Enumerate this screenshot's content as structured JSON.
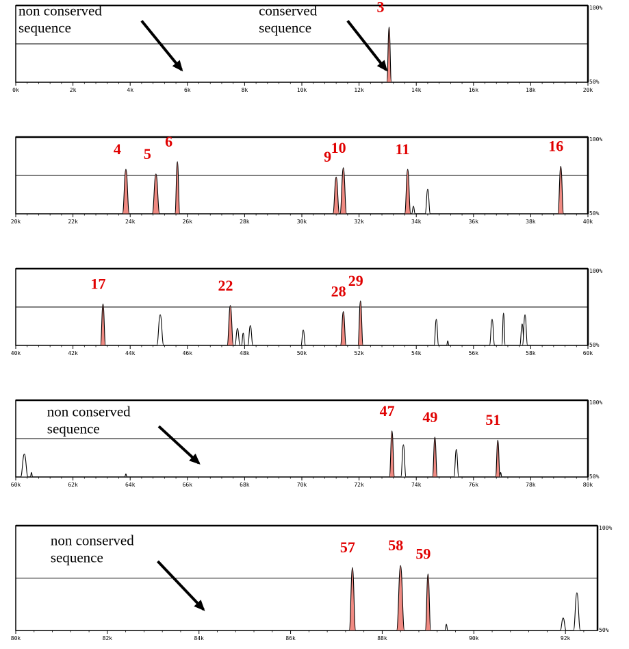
{
  "chart_data": [
    {
      "type": "area",
      "title": "",
      "xlim": [
        0,
        20000
      ],
      "ylim": [
        50,
        100
      ],
      "x_ticks": [
        "0k",
        "2k",
        "4k",
        "6k",
        "8k",
        "10k",
        "12k",
        "14k",
        "16k",
        "18k",
        "20k"
      ],
      "y_tick_top": "100%",
      "y_tick_bottom": "50%",
      "threshold": 75,
      "annotations": [
        {
          "lines": [
            "non conserved",
            "sequence"
          ],
          "text_x": 0,
          "text_y": 98,
          "arrow_from": [
            4400,
            90
          ],
          "arrow_to": [
            5800,
            58
          ]
        },
        {
          "lines": [
            "conserved",
            "sequence"
          ],
          "text_x": 8400,
          "text_y": 98,
          "arrow_from": [
            11600,
            90
          ],
          "arrow_to": [
            12950,
            58
          ]
        }
      ],
      "peaks": [
        {
          "label": "3",
          "x": 13050,
          "width": 160,
          "height": 86,
          "conserved": true
        }
      ]
    },
    {
      "type": "area",
      "title": "",
      "xlim": [
        20000,
        40000
      ],
      "ylim": [
        50,
        100
      ],
      "x_ticks": [
        "20k",
        "22k",
        "24k",
        "26k",
        "28k",
        "30k",
        "32k",
        "34k",
        "36k",
        "38k",
        "40k"
      ],
      "y_tick_top": "100%",
      "y_tick_bottom": "50%",
      "threshold": 75,
      "annotations": [],
      "peaks": [
        {
          "label": "4",
          "x": 23850,
          "width": 240,
          "height": 79,
          "conserved": true
        },
        {
          "label": "5",
          "x": 24900,
          "width": 260,
          "height": 76,
          "conserved": true
        },
        {
          "label": "6",
          "x": 25650,
          "width": 170,
          "height": 84,
          "conserved": true
        },
        {
          "label": "9",
          "x": 31200,
          "width": 230,
          "height": 74,
          "conserved": true
        },
        {
          "label": "10",
          "x": 31450,
          "width": 230,
          "height": 80,
          "conserved": true
        },
        {
          "label": "11",
          "x": 33700,
          "width": 210,
          "height": 79,
          "conserved": true
        },
        {
          "label": "",
          "x": 33900,
          "width": 120,
          "height": 55,
          "conserved": false
        },
        {
          "label": "",
          "x": 34400,
          "width": 180,
          "height": 66,
          "conserved": false
        },
        {
          "label": "16",
          "x": 39050,
          "width": 200,
          "height": 81,
          "conserved": true
        }
      ]
    },
    {
      "type": "area",
      "title": "",
      "xlim": [
        40000,
        60000
      ],
      "ylim": [
        50,
        100
      ],
      "x_ticks": [
        "40k",
        "42k",
        "44k",
        "46k",
        "48k",
        "50k",
        "52k",
        "54k",
        "56k",
        "58k",
        "60k"
      ],
      "y_tick_top": "100%",
      "y_tick_bottom": "50%",
      "threshold": 75,
      "annotations": [],
      "peaks": [
        {
          "label": "17",
          "x": 43050,
          "width": 180,
          "height": 77,
          "conserved": true
        },
        {
          "label": "",
          "x": 45050,
          "width": 240,
          "height": 70,
          "conserved": false
        },
        {
          "label": "22",
          "x": 47500,
          "width": 220,
          "height": 76,
          "conserved": true
        },
        {
          "label": "",
          "x": 47750,
          "width": 180,
          "height": 61,
          "conserved": false
        },
        {
          "label": "",
          "x": 47950,
          "width": 120,
          "height": 58,
          "conserved": false
        },
        {
          "label": "",
          "x": 48200,
          "width": 180,
          "height": 63,
          "conserved": false
        },
        {
          "label": "",
          "x": 50050,
          "width": 160,
          "height": 60,
          "conserved": false
        },
        {
          "label": "28",
          "x": 51450,
          "width": 200,
          "height": 72,
          "conserved": true
        },
        {
          "label": "29",
          "x": 52050,
          "width": 180,
          "height": 79,
          "conserved": true
        },
        {
          "label": "",
          "x": 54700,
          "width": 160,
          "height": 67,
          "conserved": false
        },
        {
          "label": "",
          "x": 55100,
          "width": 80,
          "height": 53,
          "conserved": false
        },
        {
          "label": "",
          "x": 56650,
          "width": 180,
          "height": 67,
          "conserved": false
        },
        {
          "label": "",
          "x": 57050,
          "width": 120,
          "height": 71,
          "conserved": false
        },
        {
          "label": "",
          "x": 57700,
          "width": 160,
          "height": 64,
          "conserved": false
        },
        {
          "label": "",
          "x": 57800,
          "width": 180,
          "height": 70,
          "conserved": false
        }
      ]
    },
    {
      "type": "area",
      "title": "",
      "xlim": [
        60000,
        80000
      ],
      "ylim": [
        50,
        100
      ],
      "x_ticks": [
        "60k",
        "62k",
        "64k",
        "66k",
        "68k",
        "70k",
        "72k",
        "74k",
        "76k",
        "78k",
        "80k"
      ],
      "y_tick_top": "100%",
      "y_tick_bottom": "50%",
      "threshold": 75,
      "annotations": [
        {
          "lines": [
            "non conserved",
            "sequence"
          ],
          "text_x": 61000,
          "text_y": 94,
          "arrow_from": [
            65000,
            83
          ],
          "arrow_to": [
            66400,
            59
          ]
        }
      ],
      "peaks": [
        {
          "label": "",
          "x": 60300,
          "width": 260,
          "height": 65,
          "conserved": false
        },
        {
          "label": "",
          "x": 60550,
          "width": 60,
          "height": 53,
          "conserved": false
        },
        {
          "label": "",
          "x": 63850,
          "width": 60,
          "height": 52,
          "conserved": false
        },
        {
          "label": "47",
          "x": 73150,
          "width": 180,
          "height": 80,
          "conserved": true
        },
        {
          "label": "",
          "x": 73550,
          "width": 180,
          "height": 71,
          "conserved": false
        },
        {
          "label": "49",
          "x": 74650,
          "width": 170,
          "height": 76,
          "conserved": true
        },
        {
          "label": "",
          "x": 75400,
          "width": 170,
          "height": 68,
          "conserved": false
        },
        {
          "label": "51",
          "x": 76850,
          "width": 160,
          "height": 74,
          "conserved": true
        },
        {
          "label": "",
          "x": 76950,
          "width": 80,
          "height": 53,
          "conserved": false
        }
      ]
    },
    {
      "type": "area",
      "title": "",
      "xlim": [
        80000,
        92700
      ],
      "ylim": [
        50,
        100
      ],
      "x_ticks": [
        "80k",
        "82k",
        "84k",
        "86k",
        "88k",
        "90k",
        "92k"
      ],
      "y_tick_top": "100%",
      "y_tick_bottom": "50%",
      "threshold": 75,
      "annotations": [
        {
          "lines": [
            "non conserved",
            "sequence"
          ],
          "text_x": 80700,
          "text_y": 94,
          "arrow_from": [
            83100,
            83
          ],
          "arrow_to": [
            84100,
            60
          ]
        }
      ],
      "peaks": [
        {
          "label": "57",
          "x": 87350,
          "width": 140,
          "height": 80,
          "conserved": true
        },
        {
          "label": "58",
          "x": 88400,
          "width": 170,
          "height": 81,
          "conserved": true
        },
        {
          "label": "59",
          "x": 89000,
          "width": 120,
          "height": 77,
          "conserved": true
        },
        {
          "label": "",
          "x": 89400,
          "width": 60,
          "height": 53,
          "conserved": false
        },
        {
          "label": "",
          "x": 91950,
          "width": 130,
          "height": 56,
          "conserved": false
        },
        {
          "label": "",
          "x": 92250,
          "width": 150,
          "height": 68,
          "conserved": false
        }
      ]
    }
  ]
}
